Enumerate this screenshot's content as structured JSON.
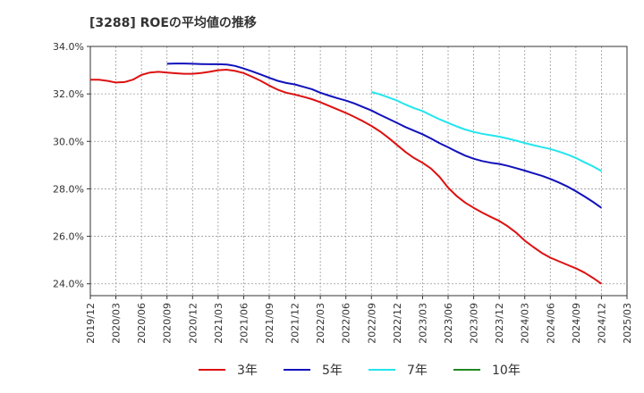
{
  "chart_data": {
    "type": "line",
    "title": "[3288]  ROEの平均値の推移",
    "xlabel": "",
    "ylabel": "",
    "ylim": [
      23.5,
      34.0
    ],
    "x_ticks": [
      "2019/12",
      "2020/03",
      "2020/06",
      "2020/09",
      "2020/12",
      "2021/03",
      "2021/06",
      "2021/09",
      "2021/12",
      "2022/03",
      "2022/06",
      "2022/09",
      "2022/12",
      "2023/03",
      "2023/06",
      "2023/09",
      "2023/12",
      "2024/03",
      "2024/06",
      "2024/09",
      "2024/12",
      "2025/03"
    ],
    "y_ticks": [
      24,
      26,
      28,
      30,
      32,
      34
    ],
    "y_tick_labels": [
      "24.0%",
      "26.0%",
      "28.0%",
      "30.0%",
      "32.0%",
      "34.0%"
    ],
    "grid": true,
    "legend_position": "bottom",
    "series": [
      {
        "name": "3年",
        "color": "#dd1111",
        "points": [
          [
            "2019/12",
            32.6
          ],
          [
            "2020/01",
            32.6
          ],
          [
            "2020/02",
            32.55
          ],
          [
            "2020/03",
            32.48
          ],
          [
            "2020/04",
            32.5
          ],
          [
            "2020/05",
            32.6
          ],
          [
            "2020/06",
            32.8
          ],
          [
            "2020/07",
            32.9
          ],
          [
            "2020/08",
            32.93
          ],
          [
            "2020/09",
            32.9
          ],
          [
            "2020/10",
            32.87
          ],
          [
            "2020/11",
            32.85
          ],
          [
            "2020/12",
            32.85
          ],
          [
            "2021/01",
            32.88
          ],
          [
            "2021/02",
            32.93
          ],
          [
            "2021/03",
            33.0
          ],
          [
            "2021/04",
            33.02
          ],
          [
            "2021/05",
            32.97
          ],
          [
            "2021/06",
            32.88
          ],
          [
            "2021/07",
            32.72
          ],
          [
            "2021/08",
            32.55
          ],
          [
            "2021/09",
            32.35
          ],
          [
            "2021/10",
            32.18
          ],
          [
            "2021/11",
            32.05
          ],
          [
            "2021/12",
            31.97
          ],
          [
            "2022/01",
            31.88
          ],
          [
            "2022/02",
            31.78
          ],
          [
            "2022/03",
            31.65
          ],
          [
            "2022/04",
            31.5
          ],
          [
            "2022/05",
            31.35
          ],
          [
            "2022/06",
            31.2
          ],
          [
            "2022/07",
            31.03
          ],
          [
            "2022/08",
            30.85
          ],
          [
            "2022/09",
            30.65
          ],
          [
            "2022/10",
            30.42
          ],
          [
            "2022/11",
            30.15
          ],
          [
            "2022/12",
            29.85
          ],
          [
            "2023/01",
            29.55
          ],
          [
            "2023/02",
            29.3
          ],
          [
            "2023/03",
            29.1
          ],
          [
            "2023/04",
            28.85
          ],
          [
            "2023/05",
            28.5
          ],
          [
            "2023/06",
            28.05
          ],
          [
            "2023/07",
            27.7
          ],
          [
            "2023/08",
            27.42
          ],
          [
            "2023/09",
            27.2
          ],
          [
            "2023/10",
            27.0
          ],
          [
            "2023/11",
            26.82
          ],
          [
            "2023/12",
            26.65
          ],
          [
            "2024/01",
            26.42
          ],
          [
            "2024/02",
            26.15
          ],
          [
            "2024/03",
            25.82
          ],
          [
            "2024/04",
            25.55
          ],
          [
            "2024/05",
            25.3
          ],
          [
            "2024/06",
            25.1
          ],
          [
            "2024/07",
            24.95
          ],
          [
            "2024/08",
            24.8
          ],
          [
            "2024/09",
            24.65
          ],
          [
            "2024/10",
            24.47
          ],
          [
            "2024/11",
            24.25
          ],
          [
            "2024/12",
            24.0
          ]
        ]
      },
      {
        "name": "5年",
        "color": "#1111bb",
        "points": [
          [
            "2020/09",
            33.27
          ],
          [
            "2020/10",
            33.28
          ],
          [
            "2020/11",
            33.28
          ],
          [
            "2020/12",
            33.27
          ],
          [
            "2021/01",
            33.26
          ],
          [
            "2021/02",
            33.25
          ],
          [
            "2021/03",
            33.25
          ],
          [
            "2021/04",
            33.24
          ],
          [
            "2021/05",
            33.18
          ],
          [
            "2021/06",
            33.07
          ],
          [
            "2021/07",
            32.95
          ],
          [
            "2021/08",
            32.82
          ],
          [
            "2021/09",
            32.68
          ],
          [
            "2021/10",
            32.55
          ],
          [
            "2021/11",
            32.46
          ],
          [
            "2021/12",
            32.4
          ],
          [
            "2021/11b",
            32.3
          ],
          [
            "2022/02",
            32.2
          ],
          [
            "2022/03",
            32.05
          ],
          [
            "2022/04",
            31.93
          ],
          [
            "2022/05",
            31.82
          ],
          [
            "2022/06",
            31.72
          ],
          [
            "2022/07",
            31.6
          ],
          [
            "2022/08",
            31.45
          ],
          [
            "2022/09",
            31.3
          ],
          [
            "2022/10",
            31.12
          ],
          [
            "2022/11",
            30.95
          ],
          [
            "2022/12",
            30.78
          ],
          [
            "2023/01",
            30.6
          ],
          [
            "2023/02",
            30.45
          ],
          [
            "2023/03",
            30.3
          ],
          [
            "2023/04",
            30.12
          ],
          [
            "2023/05",
            29.92
          ],
          [
            "2023/06",
            29.75
          ],
          [
            "2023/07",
            29.57
          ],
          [
            "2023/08",
            29.4
          ],
          [
            "2023/09",
            29.27
          ],
          [
            "2023/10",
            29.17
          ],
          [
            "2023/11",
            29.1
          ],
          [
            "2023/12",
            29.05
          ],
          [
            "2024/01",
            28.97
          ],
          [
            "2024/02",
            28.87
          ],
          [
            "2024/03",
            28.77
          ],
          [
            "2024/04",
            28.66
          ],
          [
            "2024/05",
            28.55
          ],
          [
            "2024/06",
            28.42
          ],
          [
            "2024/07",
            28.27
          ],
          [
            "2024/08",
            28.1
          ],
          [
            "2024/09",
            27.9
          ],
          [
            "2024/10",
            27.68
          ],
          [
            "2024/11",
            27.45
          ],
          [
            "2024/12",
            27.2
          ]
        ]
      },
      {
        "name": "7年",
        "color": "#22e5ee",
        "points": [
          [
            "2022/09",
            32.08
          ],
          [
            "2022/10",
            31.98
          ],
          [
            "2022/11",
            31.85
          ],
          [
            "2022/12",
            31.72
          ],
          [
            "2023/01",
            31.55
          ],
          [
            "2023/02",
            31.4
          ],
          [
            "2023/03",
            31.28
          ],
          [
            "2023/04",
            31.1
          ],
          [
            "2023/05",
            30.93
          ],
          [
            "2023/06",
            30.78
          ],
          [
            "2023/07",
            30.63
          ],
          [
            "2023/08",
            30.5
          ],
          [
            "2023/09",
            30.4
          ],
          [
            "2023/10",
            30.32
          ],
          [
            "2023/11",
            30.26
          ],
          [
            "2023/12",
            30.2
          ],
          [
            "2024/01",
            30.12
          ],
          [
            "2024/02",
            30.03
          ],
          [
            "2024/03",
            29.93
          ],
          [
            "2024/04",
            29.84
          ],
          [
            "2024/05",
            29.76
          ],
          [
            "2024/06",
            29.68
          ],
          [
            "2024/07",
            29.57
          ],
          [
            "2024/08",
            29.45
          ],
          [
            "2024/09",
            29.3
          ],
          [
            "2024/10",
            29.12
          ],
          [
            "2024/11",
            28.95
          ],
          [
            "2024/12",
            28.75
          ]
        ]
      },
      {
        "name": "10年",
        "color": "#228822",
        "points": []
      }
    ]
  }
}
